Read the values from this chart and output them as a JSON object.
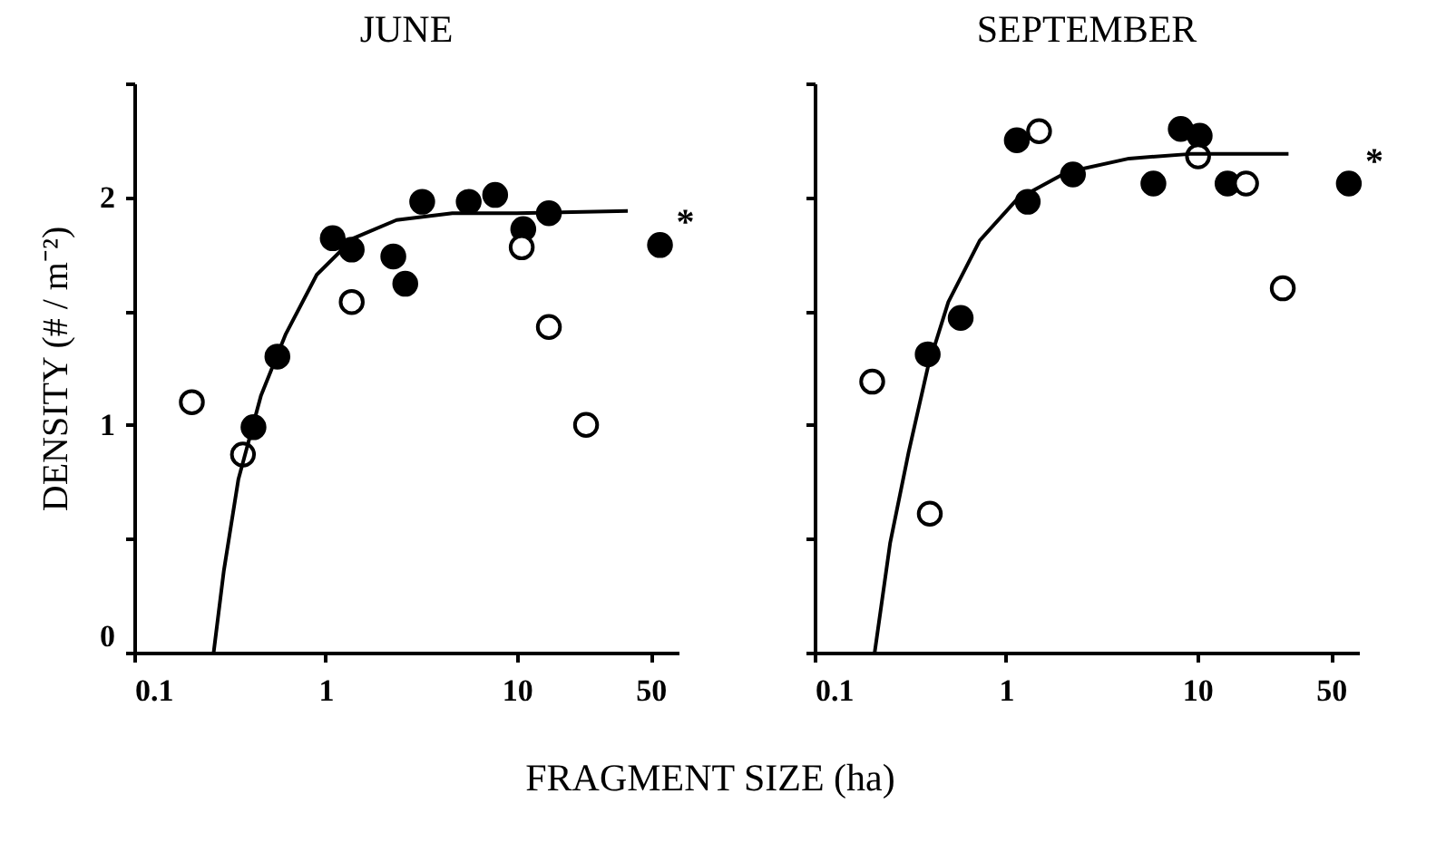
{
  "chart_data": [
    {
      "type": "scatter",
      "title": "JUNE",
      "ylabel": "DENSITY (# / m⁻²)",
      "xlabel": "FRAGMENT SIZE (ha)",
      "log": "x",
      "grid": false,
      "marker": "circle",
      "xlim": [
        0.1,
        70
      ],
      "xticks": [
        0.1,
        1,
        10,
        50
      ],
      "ylim": [
        0,
        2.5
      ],
      "yticks": [
        0,
        {
          "value": 0.5,
          "label": null
        },
        1,
        {
          "value": 1.5,
          "label": null
        },
        2,
        {
          "value": 2.5,
          "label": null
        }
      ],
      "series": [
        {
          "color": "#000000",
          "x": [
            0.42,
            0.56,
            1.09,
            1.37,
            2.26,
            2.61,
            3.2,
            5.6,
            7.7,
            10.8,
            14.7,
            56
          ],
          "values": [
            0.99,
            1.3,
            1.82,
            1.77,
            1.74,
            1.62,
            1.98,
            1.98,
            2.01,
            1.86,
            1.93,
            1.79
          ]
        },
        {
          "color": "#ffffff",
          "x": [
            0.2,
            0.37,
            1.37,
            10.6,
            14.7,
            23
          ],
          "values": [
            1.1,
            0.87,
            1.54,
            1.78,
            1.43,
            1.0
          ]
        },
        {
          "type": "line",
          "color": "#000000",
          "marker": "none",
          "line_style": "solid",
          "x": [
            0.26,
            0.294,
            0.35,
            0.46,
            0.62,
            0.9,
            1.4,
            2.35,
            4.6,
            10,
            38
          ],
          "values": [
            0,
            0.36,
            0.76,
            1.13,
            1.4,
            1.66,
            1.82,
            1.9,
            1.93,
            1.93,
            1.94
          ]
        }
      ],
      "annotations": [
        {
          "text": "*",
          "x": 56,
          "y": 1.79
        }
      ]
    },
    {
      "type": "scatter",
      "title": "SEPTEMBER",
      "log": "x",
      "grid": false,
      "marker": "circle",
      "tick_labels": "x",
      "xlim": [
        0.1,
        70
      ],
      "xticks": [
        0.1,
        1,
        10,
        50
      ],
      "ylim": [
        0,
        2.5
      ],
      "yticks": [
        0,
        0.5,
        1,
        1.5,
        2,
        2.5
      ],
      "series": [
        {
          "color": "#000000",
          "x": [
            0.39,
            0.58,
            1.14,
            1.3,
            2.24,
            5.9,
            8.2,
            10.3,
            14.4,
            62
          ],
          "values": [
            1.31,
            1.47,
            2.25,
            1.98,
            2.1,
            2.06,
            2.3,
            2.27,
            2.06,
            2.06
          ]
        },
        {
          "color": "#ffffff",
          "x": [
            0.2,
            0.4,
            1.49,
            10.1,
            18,
            28
          ],
          "values": [
            1.19,
            0.61,
            2.29,
            2.18,
            2.06,
            1.6
          ]
        },
        {
          "type": "line",
          "color": "#000000",
          "marker": "none",
          "line_style": "solid",
          "x": [
            0.206,
            0.248,
            0.31,
            0.39,
            0.5,
            0.73,
            1.14,
            2.08,
            4.4,
            9.2,
            30
          ],
          "values": [
            0,
            0.48,
            0.88,
            1.25,
            1.54,
            1.81,
            1.99,
            2.11,
            2.17,
            2.19,
            2.19
          ]
        }
      ],
      "annotations": [
        {
          "text": "*",
          "x": 62,
          "y": 2.06
        }
      ]
    }
  ]
}
